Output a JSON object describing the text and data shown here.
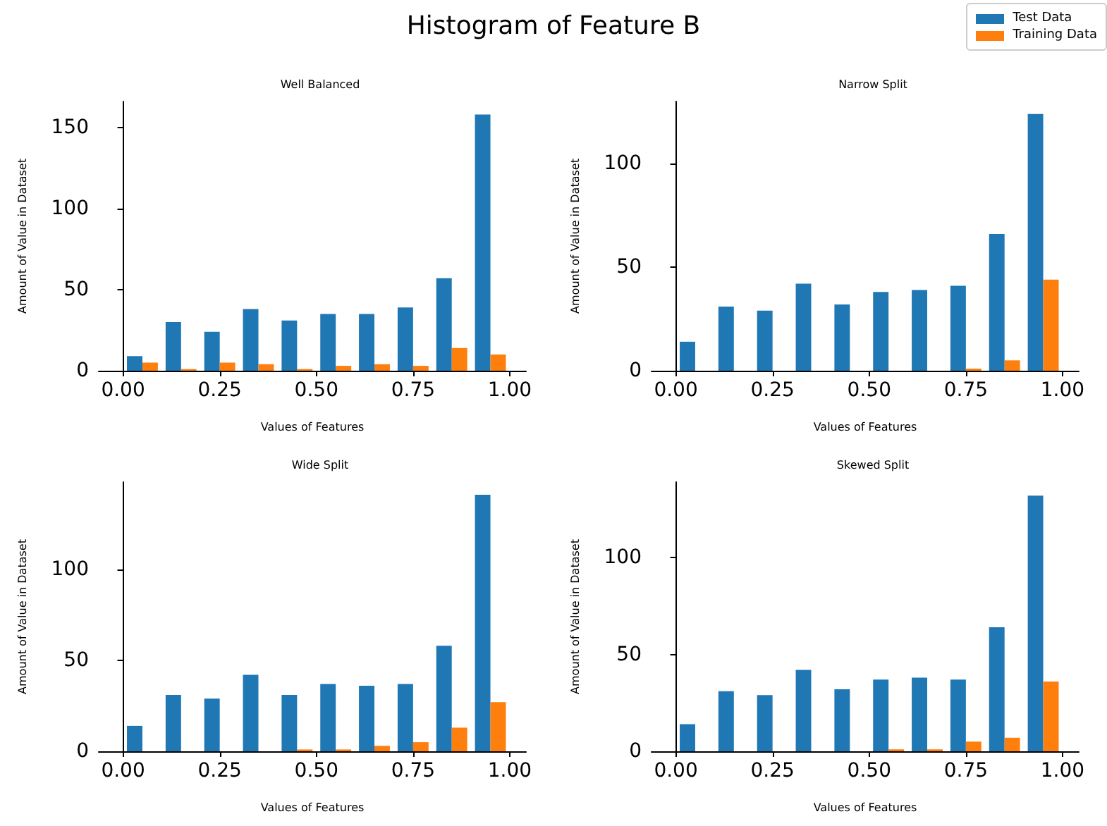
{
  "chart_data": [
    {
      "type": "histogram",
      "title": "Well Balanced",
      "xlabel": "Values of Features",
      "ylabel": "Amount of Value in Dataset",
      "annotations": [
        "Histogram of Feature B"
      ],
      "legend": "top right",
      "bins": [
        0,
        0.1,
        0.2,
        0.3,
        0.4,
        0.5,
        0.6,
        0.7,
        0.8,
        0.9,
        1.0
      ],
      "series": [
        {
          "name": "Test Data",
          "color": "#1f77b4",
          "values": [
            9,
            30,
            24,
            38,
            31,
            35,
            35,
            39,
            57,
            158
          ]
        },
        {
          "name": "Training Data",
          "color": "#ff7f0e",
          "values": [
            5,
            1,
            5,
            4,
            1,
            3,
            4,
            3,
            14,
            10
          ]
        }
      ],
      "xlim": [
        -0.063,
        1.042
      ],
      "ylim": [
        0,
        166
      ],
      "xticks": [
        {
          "value": 0,
          "label": "0.00"
        },
        {
          "value": 0.25,
          "label": "0.25"
        },
        {
          "value": 0.5,
          "label": "0.50"
        },
        {
          "value": 0.75,
          "label": "0.75"
        },
        {
          "value": 1,
          "label": "1.00"
        }
      ],
      "yticks": [
        0,
        50,
        100,
        150
      ]
    },
    {
      "type": "histogram",
      "title": "Narrow Split",
      "xlabel": "Values of Features",
      "ylabel": "Amount of Value in Dataset",
      "bins": [
        0,
        0.1,
        0.2,
        0.3,
        0.4,
        0.5,
        0.6,
        0.7,
        0.8,
        0.9,
        1.0
      ],
      "series": [
        {
          "color": "#1f77b4",
          "values": [
            14,
            31,
            29,
            42,
            32,
            38,
            39,
            41,
            66,
            124
          ]
        },
        {
          "color": "#ff7f0e",
          "values": [
            0,
            0,
            0,
            0,
            0,
            0,
            0,
            1,
            5,
            44
          ]
        }
      ],
      "xlim": [
        -0.063,
        1.042
      ],
      "ylim": [
        0,
        130
      ],
      "xticks": [
        {
          "value": 0,
          "label": "0.00"
        },
        {
          "value": 0.25,
          "label": "0.25"
        },
        {
          "value": 0.5,
          "label": "0.50"
        },
        {
          "value": 0.75,
          "label": "0.75"
        },
        {
          "value": 1,
          "label": "1.00"
        }
      ],
      "yticks": [
        0,
        50,
        100
      ]
    },
    {
      "type": "histogram",
      "title": "Wide Split",
      "xlabel": "Values of Features",
      "ylabel": "Amount of Value in Dataset",
      "bins": [
        0,
        0.1,
        0.2,
        0.3,
        0.4,
        0.5,
        0.6,
        0.7,
        0.8,
        0.9,
        1.0
      ],
      "series": [
        {
          "color": "#1f77b4",
          "values": [
            14,
            31,
            29,
            42,
            31,
            37,
            36,
            37,
            58,
            141
          ]
        },
        {
          "color": "#ff7f0e",
          "values": [
            0,
            0,
            0,
            0,
            1,
            1,
            3,
            5,
            13,
            27
          ]
        }
      ],
      "xlim": [
        -0.063,
        1.042
      ],
      "ylim": [
        0,
        148
      ],
      "xticks": [
        {
          "value": 0,
          "label": "0.00"
        },
        {
          "value": 0.25,
          "label": "0.25"
        },
        {
          "value": 0.5,
          "label": "0.50"
        },
        {
          "value": 0.75,
          "label": "0.75"
        },
        {
          "value": 1,
          "label": "1.00"
        }
      ],
      "yticks": [
        0,
        50,
        100
      ]
    },
    {
      "type": "histogram",
      "title": "Skewed Split",
      "xlabel": "Values of Features",
      "ylabel": "Amount of Value in Dataset",
      "bins": [
        0,
        0.1,
        0.2,
        0.3,
        0.4,
        0.5,
        0.6,
        0.7,
        0.8,
        0.9,
        1.0
      ],
      "series": [
        {
          "color": "#1f77b4",
          "values": [
            14,
            31,
            29,
            42,
            32,
            37,
            38,
            37,
            64,
            132
          ]
        },
        {
          "color": "#ff7f0e",
          "values": [
            0,
            0,
            0,
            0,
            0,
            1,
            1,
            5,
            7,
            36
          ]
        }
      ],
      "xlim": [
        -0.063,
        1.042
      ],
      "ylim": [
        0,
        139
      ],
      "xticks": [
        {
          "value": 0,
          "label": "0.00"
        },
        {
          "value": 0.25,
          "label": "0.25"
        },
        {
          "value": 0.5,
          "label": "0.50"
        },
        {
          "value": 0.75,
          "label": "0.75"
        },
        {
          "value": 1,
          "label": "1.00"
        }
      ],
      "yticks": [
        0,
        50,
        100
      ]
    }
  ]
}
